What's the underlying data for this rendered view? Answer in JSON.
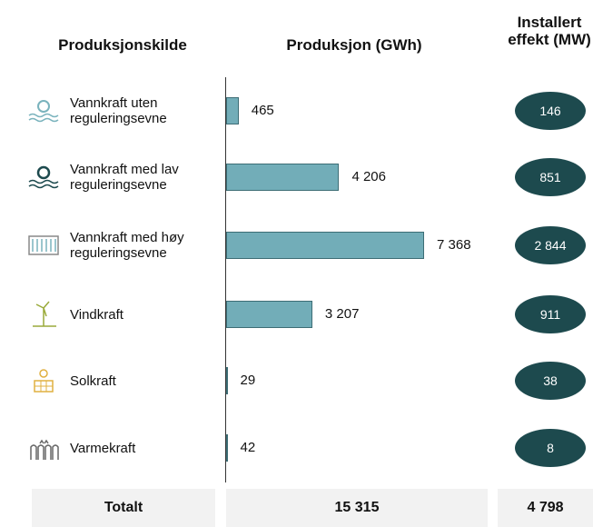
{
  "chart_data": {
    "type": "bar",
    "orientation": "horizontal",
    "columns": [
      "Produksjonskilde",
      "Produksjon (GWh)",
      "Installert effekt (MW)"
    ],
    "categories": [
      "Vannkraft uten reguleringsevne",
      "Vannkraft med lav reguleringsevne",
      "Vannkraft med høy reguleringsevne",
      "Vindkraft",
      "Solkraft",
      "Varmekraft"
    ],
    "values": [
      465,
      4206,
      7368,
      3207,
      29,
      42
    ],
    "value_labels": [
      "465",
      "4 206",
      "7 368",
      "3 207",
      "29",
      "42"
    ],
    "color": "#72adb8",
    "capacity": [
      146,
      851,
      2844,
      911,
      38,
      8
    ],
    "capacity_labels": [
      "146",
      "851",
      "2 844",
      "911",
      "38",
      "8"
    ],
    "capacity_color": "#1d4a4e",
    "total_label": "Totalt",
    "total_value": 15315,
    "total_value_label": "15 315",
    "total_capacity": 4798,
    "total_capacity_label": "4 798"
  }
}
